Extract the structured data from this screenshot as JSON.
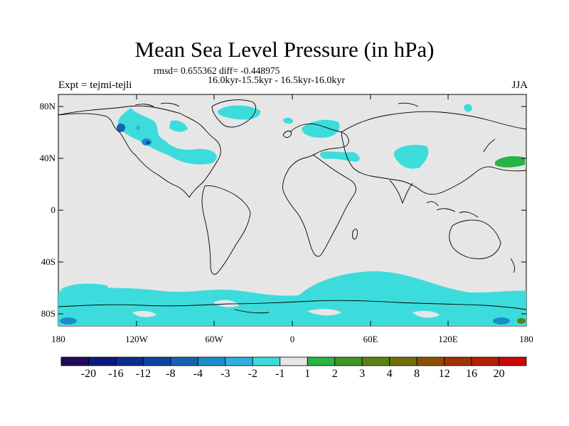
{
  "map": {
    "title": "Mean Sea Level Pressure (in hPa)",
    "stats": "rmsd= 0.655362 diff= -0.448975",
    "period": "16.0kyr-15.5kyr - 16.5kyr-16.0kyr",
    "experiment": "Expt = tejmi-tejli",
    "season": "JJA",
    "lat_labels": [
      "80N",
      "40N",
      "0",
      "40S",
      "80S"
    ],
    "lon_labels": [
      "180",
      "120W",
      "60W",
      "0",
      "60E",
      "120E",
      "180"
    ]
  },
  "colorbar": {
    "labels": [
      "-20",
      "-16",
      "-12",
      "-8",
      "-4",
      "-3",
      "-2",
      "-1",
      "1",
      "2",
      "3",
      "4",
      "8",
      "12",
      "16",
      "20"
    ],
    "colors": [
      "#1e0a5a",
      "#0a1a78",
      "#0a2e8c",
      "#0c469c",
      "#1462b0",
      "#1e8cc8",
      "#32aedc",
      "#3cdcdc",
      "#e6e6e6",
      "#28b446",
      "#3c9628",
      "#5a8214",
      "#6e6e0a",
      "#8c5005",
      "#a03205",
      "#b41e05",
      "#c80a0a"
    ]
  },
  "colors": {
    "background": "#e6e6e6",
    "negative_light": "#3cdcdc",
    "negative_mid": "#32aedc",
    "negative_strong": "#1462b0",
    "positive": "#28b446",
    "coast": "#000000"
  }
}
